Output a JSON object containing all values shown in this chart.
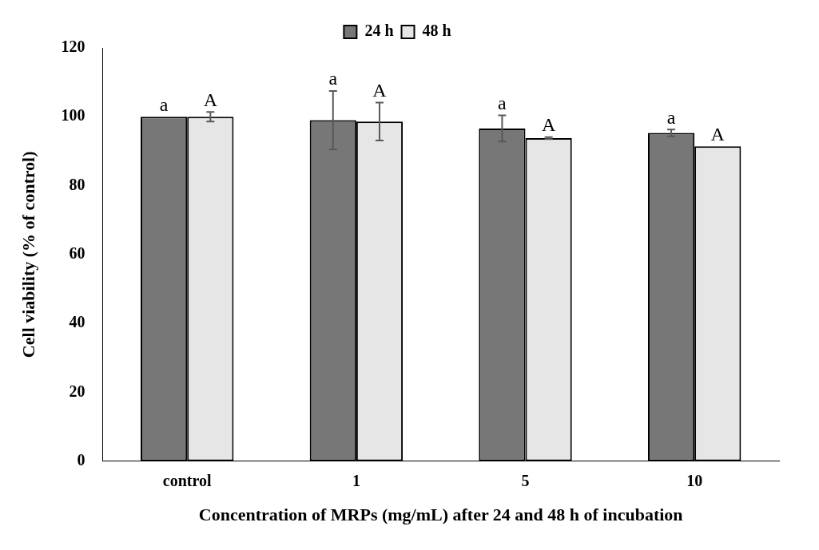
{
  "chart_data": {
    "type": "bar",
    "xlabel": "Concentration of MRPs (mg/mL) after 24 and 48 h of incubation",
    "ylabel": "Cell viability (% of control)",
    "categories": [
      "control",
      "1",
      "5",
      "10"
    ],
    "series": [
      {
        "name": "24 h",
        "color": "#777777",
        "values": [
          100,
          99,
          96.6,
          95.3
        ],
        "errors": [
          null,
          8.5,
          3.8,
          1.0
        ]
      },
      {
        "name": "48 h",
        "color": "#e6e6e6",
        "values": [
          100,
          98.6,
          93.8,
          91.4
        ],
        "errors": [
          1.4,
          5.5,
          0.3,
          null
        ]
      }
    ],
    "ylim": [
      0,
      120
    ],
    "yticks": [
      0,
      20,
      40,
      60,
      80,
      100,
      120
    ],
    "grid": false,
    "legend": "top",
    "annotations": [
      {
        "text": "a",
        "x": "control",
        "y": 100
      },
      {
        "text": "A",
        "x": "control",
        "y": 100
      },
      {
        "text": "a",
        "x": "1",
        "y": 99
      },
      {
        "text": "A",
        "x": "1",
        "y": 98.6
      },
      {
        "text": "a",
        "x": "5",
        "y": 96.6
      },
      {
        "text": "A",
        "x": "5",
        "y": 93.8
      },
      {
        "text": "a",
        "x": "10",
        "y": 95.3
      },
      {
        "text": "A",
        "x": "10",
        "y": 91.4
      }
    ]
  }
}
